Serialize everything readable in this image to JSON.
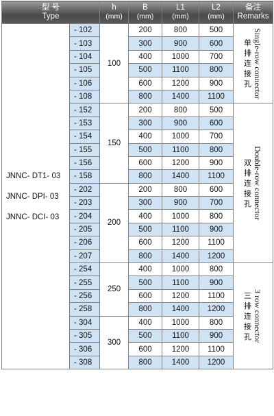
{
  "header": {
    "type_cn": "型 号",
    "type_en": "Type",
    "h_label": "h",
    "h_unit": "(mm)",
    "b_label": "B",
    "b_unit": "(mm)",
    "l1_label": "L1",
    "l1_unit": "(mm)",
    "l2_label": "L2",
    "l2_unit": "(mm)",
    "remarks_cn": "备注",
    "remarks_en": "Remarks"
  },
  "type_models": [
    "JNNC- DT1- 03",
    "JNNC- DPI- 03",
    "JNNC- DCI- 03"
  ],
  "rows": [
    {
      "suffix": "- 102",
      "b": "200",
      "l1": "800",
      "l2": "500"
    },
    {
      "suffix": "- 103",
      "b": "300",
      "l1": "900",
      "l2": "600"
    },
    {
      "suffix": "- 104",
      "b": "400",
      "l1": "1000",
      "l2": "700"
    },
    {
      "suffix": "- 105",
      "b": "500",
      "l1": "1100",
      "l2": "800"
    },
    {
      "suffix": "- 106",
      "b": "600",
      "l1": "1200",
      "l2": "900"
    },
    {
      "suffix": "- 108",
      "b": "800",
      "l1": "1400",
      "l2": "1100"
    },
    {
      "suffix": "- 152",
      "b": "200",
      "l1": "800",
      "l2": "500"
    },
    {
      "suffix": "- 153",
      "b": "300",
      "l1": "900",
      "l2": "600"
    },
    {
      "suffix": "- 154",
      "b": "400",
      "l1": "1000",
      "l2": "700"
    },
    {
      "suffix": "- 155",
      "b": "500",
      "l1": "1100",
      "l2": "800"
    },
    {
      "suffix": "- 156",
      "b": "600",
      "l1": "1200",
      "l2": "900"
    },
    {
      "suffix": "- 158",
      "b": "800",
      "l1": "1400",
      "l2": "1100"
    },
    {
      "suffix": "- 202",
      "b": "200",
      "l1": "800",
      "l2": "600"
    },
    {
      "suffix": "- 203",
      "b": "300",
      "l1": "900",
      "l2": "700"
    },
    {
      "suffix": "- 204",
      "b": "400",
      "l1": "1000",
      "l2": "800"
    },
    {
      "suffix": "- 205",
      "b": "500",
      "l1": "1100",
      "l2": "900"
    },
    {
      "suffix": "- 206",
      "b": "600",
      "l1": "1200",
      "l2": "1100"
    },
    {
      "suffix": "- 207",
      "b": "800",
      "l1": "1400",
      "l2": "1200"
    },
    {
      "suffix": "- 254",
      "b": "400",
      "l1": "1000",
      "l2": "800"
    },
    {
      "suffix": "- 255",
      "b": "500",
      "l1": "1100",
      "l2": "900"
    },
    {
      "suffix": "- 256",
      "b": "600",
      "l1": "1200",
      "l2": "1100"
    },
    {
      "suffix": "- 258",
      "b": "800",
      "l1": "1400",
      "l2": "1200"
    },
    {
      "suffix": "- 304",
      "b": "400",
      "l1": "1000",
      "l2": "800"
    },
    {
      "suffix": "- 305",
      "b": "500",
      "l1": "1100",
      "l2": "900"
    },
    {
      "suffix": "- 306",
      "b": "600",
      "l1": "1200",
      "l2": "1100"
    },
    {
      "suffix": "- 308",
      "b": "800",
      "l1": "1400",
      "l2": "1200"
    }
  ],
  "h_groups": [
    {
      "value": "100",
      "rows": 6
    },
    {
      "value": "150",
      "rows": 6
    },
    {
      "value": "200",
      "rows": 6
    },
    {
      "value": "250",
      "rows": 4
    },
    {
      "value": "300",
      "rows": 4
    }
  ],
  "remark_groups": [
    {
      "cn": "单排连接孔",
      "en": "Single-row connector",
      "rows": 6
    },
    {
      "cn": "双排连接孔",
      "en": "Double-row connector",
      "rows": 12
    },
    {
      "cn": "三排连接孔",
      "en": "3 row connector",
      "rows": 8
    }
  ],
  "colors": {
    "header_top": "#9a9a9a",
    "header_bottom": "#4a4a4a",
    "row_blue": "#cfe3f5",
    "row_white": "#ffffff",
    "grid": "#7f7f7f"
  }
}
